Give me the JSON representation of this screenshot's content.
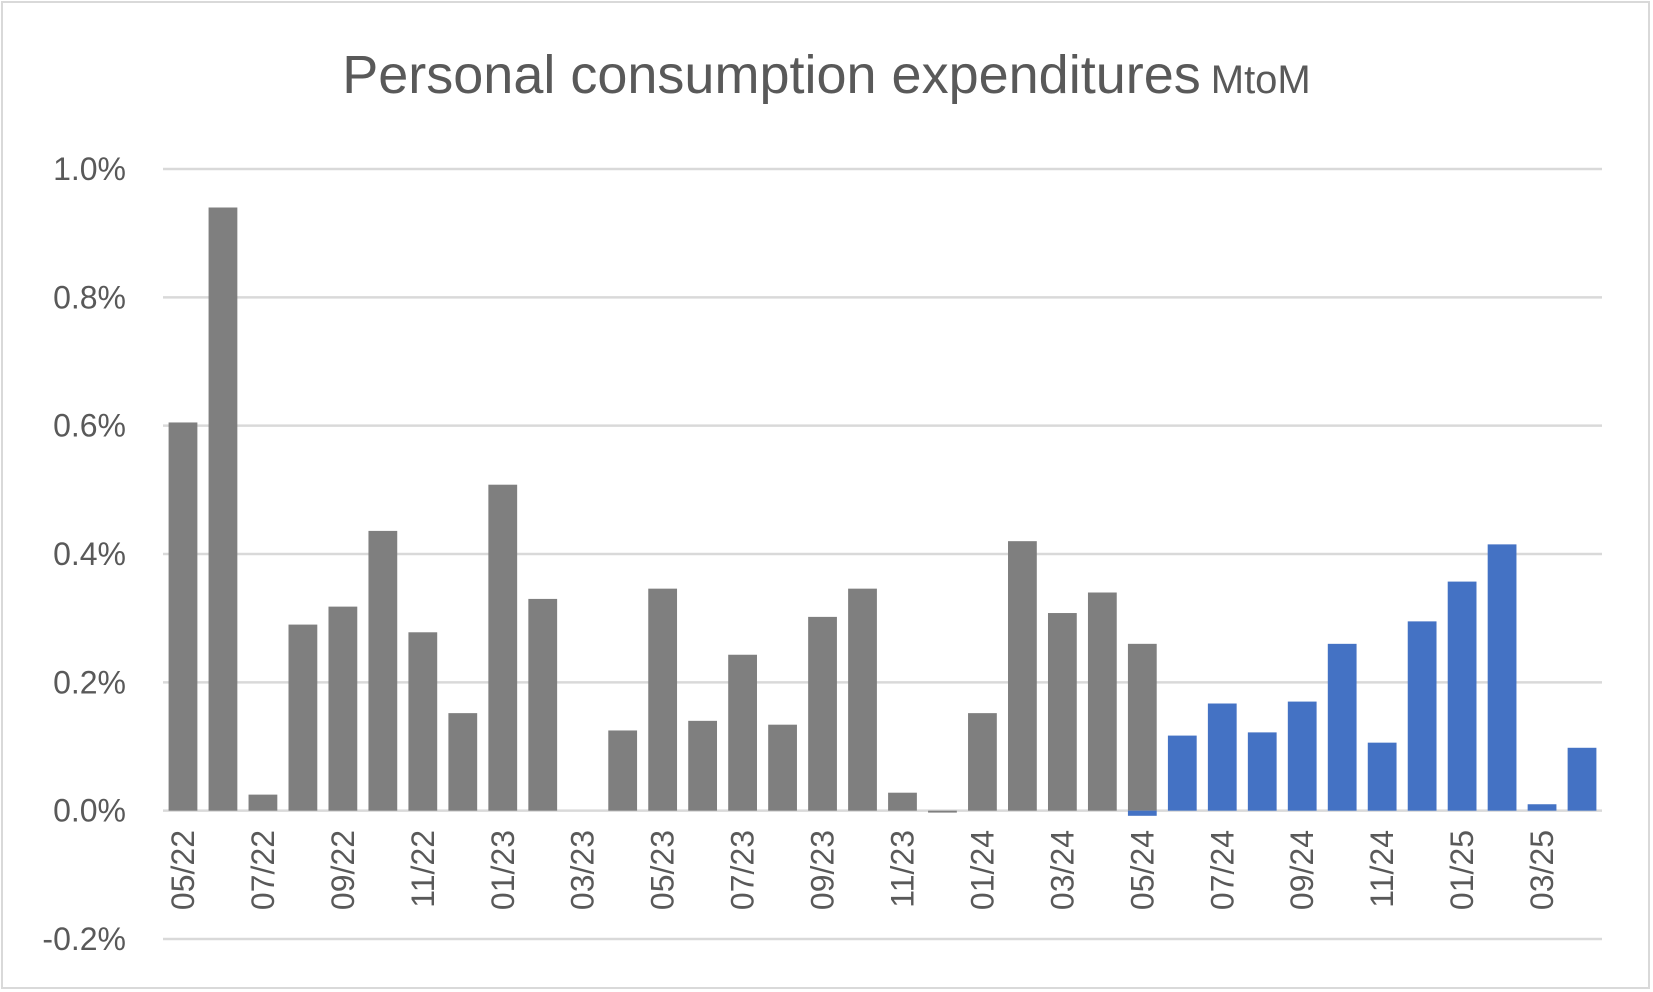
{
  "chart_data": {
    "type": "bar",
    "title": "Personal consumption expenditures",
    "title_suffix": "MtoM",
    "xlabel": "",
    "ylabel": "",
    "ylim": [
      -0.2,
      1.0
    ],
    "y_ticks": [
      "1.0%",
      "0.8%",
      "0.6%",
      "0.4%",
      "0.2%",
      "0.0%",
      "-0.2%"
    ],
    "y_tick_values": [
      1.0,
      0.8,
      0.6,
      0.4,
      0.2,
      0.0,
      -0.2
    ],
    "grid": true,
    "legend": "none",
    "colors": {
      "series_1": "#7f7f7f",
      "series_2": "#4472c4",
      "grid": "#d9d9d9",
      "text": "#595959"
    },
    "categories": [
      "05/22",
      "06/22",
      "07/22",
      "08/22",
      "09/22",
      "10/22",
      "11/22",
      "12/22",
      "01/23",
      "02/23",
      "03/23",
      "04/23",
      "05/23",
      "06/23",
      "07/23",
      "08/23",
      "09/23",
      "10/23",
      "11/23",
      "12/23",
      "01/24",
      "02/24",
      "03/24",
      "04/24",
      "05/24",
      "06/24",
      "07/24",
      "08/24",
      "09/24",
      "10/24",
      "11/24",
      "12/24",
      "01/25",
      "02/25",
      "03/25",
      "04/25"
    ],
    "x_tick_labels": [
      "05/22",
      "",
      "07/22",
      "",
      "09/22",
      "",
      "11/22",
      "",
      "01/23",
      "",
      "03/23",
      "",
      "05/23",
      "",
      "07/23",
      "",
      "09/23",
      "",
      "11/23",
      "",
      "01/24",
      "",
      "03/24",
      "",
      "05/24",
      "",
      "07/24",
      "",
      "09/24",
      "",
      "11/24",
      "",
      "01/25",
      "",
      "03/25",
      ""
    ],
    "series": [
      {
        "values": [
          0.605,
          0.94,
          0.025,
          0.29,
          0.318,
          0.436,
          0.278,
          0.152,
          0.508,
          0.33,
          null,
          0.125,
          0.346,
          0.14,
          0.243,
          0.134,
          0.302,
          0.346,
          0.028,
          -0.003,
          0.152,
          0.42,
          0.308,
          0.34,
          0.26,
          null,
          null,
          null,
          null,
          null,
          null,
          null,
          null,
          null,
          null,
          null
        ]
      },
      {
        "values": [
          null,
          null,
          null,
          null,
          null,
          null,
          null,
          null,
          null,
          null,
          null,
          null,
          null,
          null,
          null,
          null,
          null,
          null,
          null,
          null,
          null,
          null,
          null,
          null,
          -0.008,
          0.117,
          0.167,
          0.122,
          0.17,
          0.26,
          0.106,
          0.295,
          0.357,
          0.415,
          0.01,
          0.098
        ]
      }
    ]
  }
}
